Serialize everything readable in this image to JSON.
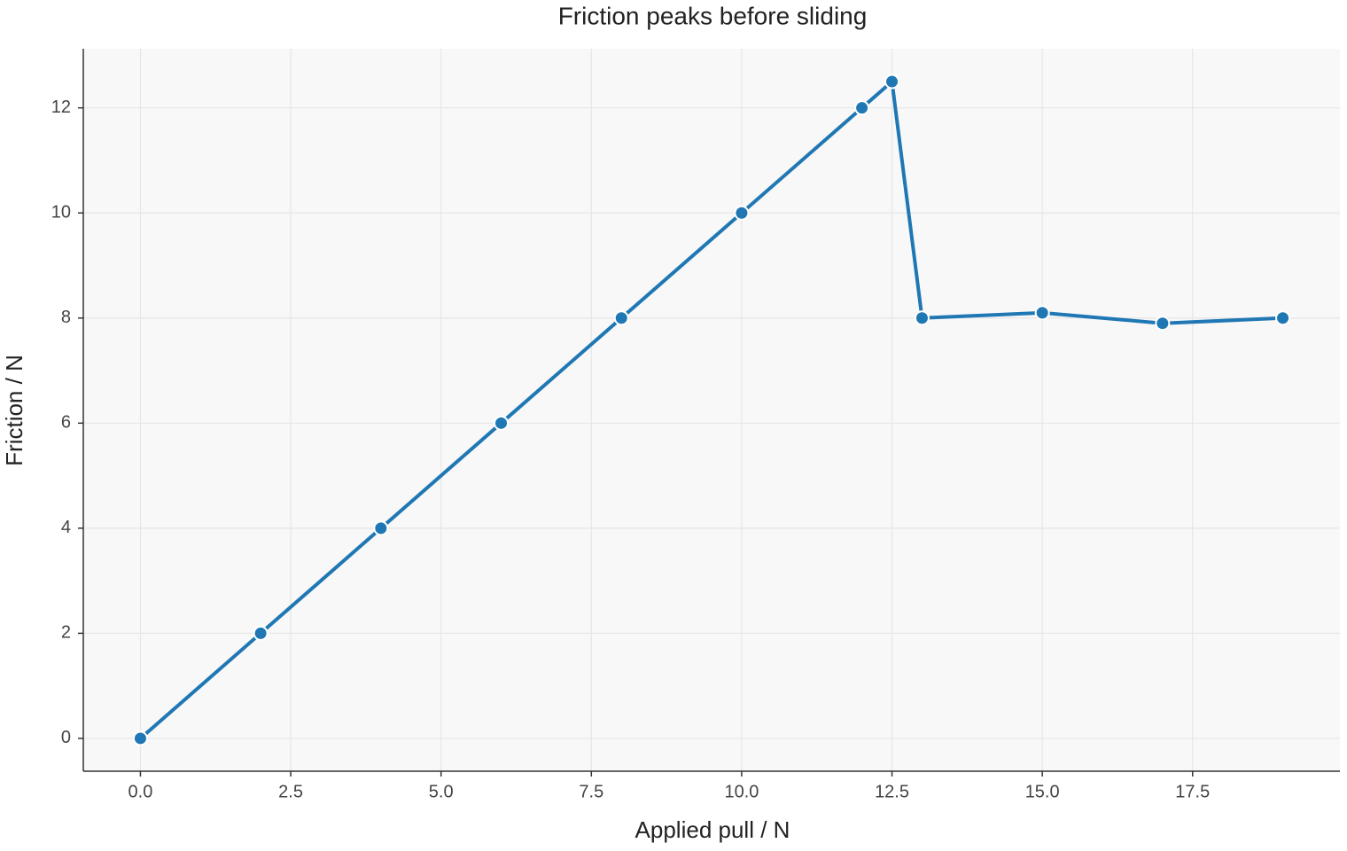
{
  "chart_data": {
    "type": "line",
    "title": "Friction peaks before sliding",
    "x_label": "Applied pull / N",
    "y_label": "Friction / N",
    "x": [
      0,
      2,
      4,
      6,
      8,
      10,
      12,
      12.5,
      13,
      15,
      17,
      19
    ],
    "series": [
      {
        "name": "Friction",
        "color": "#1f77b4",
        "values": [
          0,
          2,
          4,
          6,
          8,
          10,
          12,
          12.5,
          8,
          8.1,
          7.9,
          8
        ]
      }
    ],
    "xlim": [
      -0.95,
      19.95
    ],
    "ylim": [
      -0.625,
      13.125
    ],
    "xticks": [
      {
        "value": 0,
        "label": "0.0"
      },
      2.5,
      {
        "value": 5,
        "label": "5.0"
      },
      7.5,
      {
        "value": 10,
        "label": "10.0"
      },
      12.5,
      {
        "value": 15,
        "label": "15.0"
      },
      17.5
    ],
    "yticks": [
      0,
      2,
      4,
      6,
      8,
      10,
      12
    ],
    "grid": true
  }
}
